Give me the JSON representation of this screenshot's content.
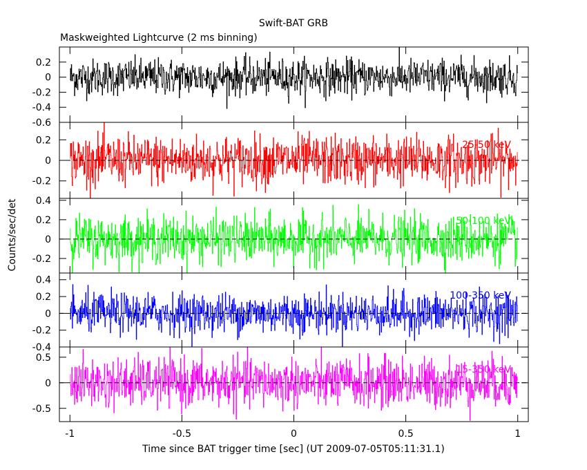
{
  "chart_data": {
    "type": "line",
    "title": "Swift-BAT GRB",
    "subtitle": "Maskweighted Lightcurve (2 ms binning)",
    "xlabel": "Time since BAT trigger time [sec] (UT 2009-07-05T05:11:31.1)",
    "ylabel": "Counts/sec/det",
    "xlim": [
      -1,
      1
    ],
    "x_ticks": [
      "-1",
      "-0.5",
      "0",
      "0.5",
      "1"
    ],
    "x_tick_values": [
      -1,
      -0.5,
      0,
      0.5,
      1
    ],
    "bin_width_sec": 0.002,
    "grid": false,
    "panels": [
      {
        "label": "",
        "color": "#000000",
        "ylim": [
          -0.6,
          0.4
        ],
        "y_ticks": [
          "0.2",
          "0",
          "-0.2",
          "-0.4",
          "-0.6"
        ],
        "y_tick_values": [
          0.2,
          0,
          -0.2,
          -0.4,
          -0.6
        ],
        "noise_amplitude": 0.12,
        "dashed_zero": false
      },
      {
        "label": "25-50 keV",
        "color": "#ff0000",
        "ylim": [
          -0.37,
          0.37
        ],
        "y_ticks": [
          "0.2",
          "0",
          "-0.2"
        ],
        "y_tick_values": [
          0.2,
          0,
          -0.2
        ],
        "noise_amplitude": 0.12,
        "dashed_zero": true
      },
      {
        "label": "50-100 keV",
        "color": "#00ff00",
        "ylim": [
          -0.35,
          0.42
        ],
        "y_ticks": [
          "0.4",
          "0.2",
          "0",
          "-0.2"
        ],
        "y_tick_values": [
          0.4,
          0.2,
          0,
          -0.2
        ],
        "noise_amplitude": 0.12,
        "dashed_zero": true
      },
      {
        "label": "100-350 keV",
        "color": "#0000ff",
        "ylim": [
          -0.4,
          0.48
        ],
        "y_ticks": [
          "0.4",
          "0.2",
          "0",
          "-0.2",
          "-0.4"
        ],
        "y_tick_values": [
          0.4,
          0.2,
          0,
          -0.2,
          -0.4
        ],
        "noise_amplitude": 0.12,
        "dashed_zero": true
      },
      {
        "label": "15-350 keV",
        "color": "#ff00ff",
        "ylim": [
          -0.76,
          0.7
        ],
        "y_ticks": [
          "0.5",
          "0",
          "-0.5"
        ],
        "y_tick_values": [
          0.5,
          0,
          -0.5
        ],
        "noise_amplitude": 0.24,
        "dashed_zero": true
      }
    ]
  }
}
